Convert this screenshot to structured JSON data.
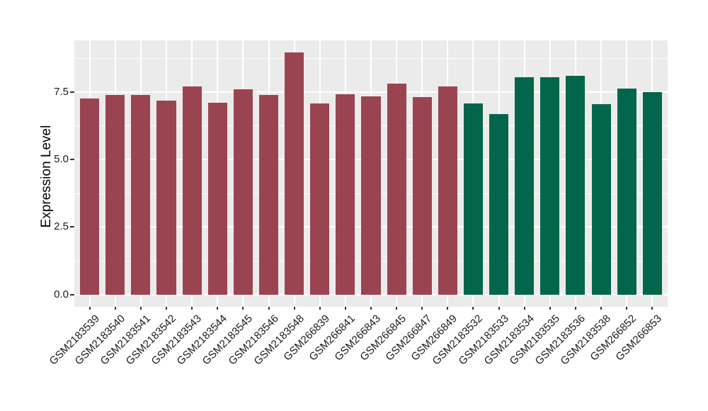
{
  "chart_data": {
    "type": "bar",
    "title": "",
    "xlabel": "",
    "ylabel": "Expression Level",
    "categories": [
      "GSM2183539",
      "GSM2183540",
      "GSM2183541",
      "GSM2183542",
      "GSM2183543",
      "GSM2183544",
      "GSM2183545",
      "GSM2183546",
      "GSM2183548",
      "GSM266839",
      "GSM266841",
      "GSM266843",
      "GSM266845",
      "GSM266847",
      "GSM266849",
      "GSM2183532",
      "GSM2183533",
      "GSM2183534",
      "GSM2183535",
      "GSM2183536",
      "GSM2183538",
      "GSM266852",
      "GSM266853"
    ],
    "values": [
      7.25,
      7.37,
      7.37,
      7.17,
      7.7,
      7.1,
      7.58,
      7.37,
      8.95,
      7.08,
      7.42,
      7.33,
      7.8,
      7.3,
      7.7,
      7.08,
      6.67,
      8.05,
      8.05,
      8.1,
      7.03,
      7.62,
      7.48
    ],
    "groups": [
      "groupA",
      "groupA",
      "groupA",
      "groupA",
      "groupA",
      "groupA",
      "groupA",
      "groupA",
      "groupA",
      "groupA",
      "groupA",
      "groupA",
      "groupA",
      "groupA",
      "groupA",
      "groupB",
      "groupB",
      "groupB",
      "groupB",
      "groupB",
      "groupB",
      "groupB",
      "groupB"
    ],
    "group_colors": {
      "groupA": "#9B4451",
      "groupB": "#01664C"
    },
    "ytick_labels": [
      "0.0",
      "2.5",
      "5.0",
      "7.5"
    ],
    "yticks": [
      0,
      2.5,
      5,
      7.5
    ],
    "minor_gridlines": [
      1.25,
      3.75,
      6.25,
      8.75
    ],
    "ylim": [
      -0.45,
      9.4
    ],
    "bar_width_frac": 0.75,
    "legend": "none",
    "grid": "on",
    "x_label_angle": -45,
    "panel_bg": "#EBEBEB",
    "grid_color": "#FFFFFF",
    "axis_text_color": "#1A1A1A",
    "tick_color": "#333333"
  }
}
